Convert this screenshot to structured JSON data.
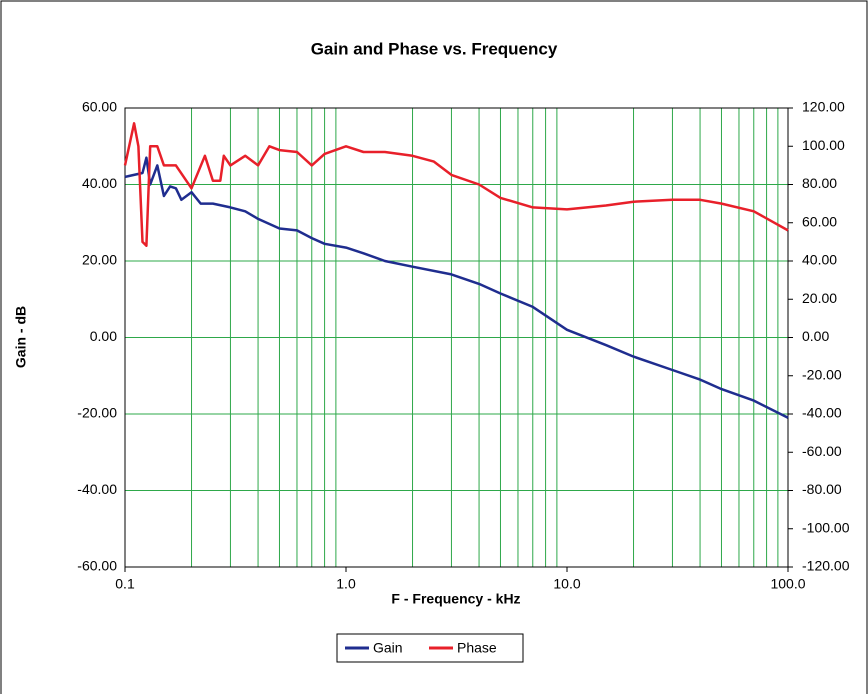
{
  "chart_data": {
    "type": "line",
    "title": "Gain and Phase vs. Frequency",
    "x_label": "F - Frequency - kHz",
    "y_label": "Gain - dB",
    "x_scale": "log",
    "grid": true,
    "minor_grid": true,
    "legend": "bottom",
    "xlim": [
      0.1,
      100
    ],
    "xticks": [
      0.1,
      {
        "value": 1,
        "label": "1.0"
      },
      {
        "value": 10,
        "label": "10.0"
      },
      {
        "value": 100,
        "label": "100.0"
      }
    ],
    "ylim": [
      -60,
      60
    ],
    "yticks": [
      {
        "value": -60,
        "label": "-60.00"
      },
      {
        "value": -40,
        "label": "-40.00"
      },
      {
        "value": -20,
        "label": "-20.00"
      },
      {
        "value": 0,
        "label": "0.00"
      },
      {
        "value": 20,
        "label": "20.00"
      },
      {
        "value": 40,
        "label": "40.00"
      },
      {
        "value": 60,
        "label": "60.00"
      }
    ],
    "y2lim": [
      -120,
      120
    ],
    "y2ticks": [
      {
        "value": -120,
        "label": "-120.00"
      },
      {
        "value": -100,
        "label": "-100.00"
      },
      {
        "value": -80,
        "label": "-80.00"
      },
      {
        "value": -60,
        "label": "-60.00"
      },
      {
        "value": -40,
        "label": "-40.00"
      },
      {
        "value": -20,
        "label": "-20.00"
      },
      {
        "value": 0,
        "label": "0.00"
      },
      {
        "value": 20,
        "label": "20.00"
      },
      {
        "value": 40,
        "label": "40.00"
      },
      {
        "value": 60,
        "label": "60.00"
      },
      {
        "value": 80,
        "label": "80.00"
      },
      {
        "value": 100,
        "label": "100.00"
      },
      {
        "value": 120,
        "label": "120.00"
      }
    ],
    "series": [
      {
        "name": "Gain",
        "color": "#1f2d8f",
        "x": [
          0.1,
          0.12,
          0.125,
          0.13,
          0.14,
          0.15,
          0.16,
          0.17,
          0.18,
          0.2,
          0.22,
          0.25,
          0.3,
          0.35,
          0.4,
          0.5,
          0.6,
          0.7,
          0.8,
          1.0,
          1.2,
          1.5,
          2,
          3,
          4,
          5,
          7,
          10,
          15,
          20,
          30,
          40,
          50,
          70,
          100
        ],
        "values": [
          42,
          43,
          47,
          40,
          45,
          37,
          39.5,
          39,
          36,
          38,
          35,
          35,
          34,
          33,
          31,
          28.5,
          28,
          26,
          24.5,
          23.5,
          22,
          20,
          18.5,
          16.5,
          14,
          11.5,
          8,
          2,
          -2,
          -5,
          -8.5,
          -11,
          -13.5,
          -16.5,
          -21
        ]
      },
      {
        "name": "Phase",
        "color": "#e8202a",
        "axis": "y2",
        "x": [
          0.1,
          0.11,
          0.115,
          0.12,
          0.125,
          0.13,
          0.14,
          0.15,
          0.17,
          0.2,
          0.23,
          0.25,
          0.27,
          0.28,
          0.3,
          0.35,
          0.4,
          0.45,
          0.5,
          0.6,
          0.7,
          0.8,
          1.0,
          1.2,
          1.5,
          2,
          2.5,
          3,
          4,
          5,
          7,
          10,
          15,
          20,
          30,
          40,
          50,
          70,
          100
        ],
        "values": [
          90,
          112,
          100,
          50,
          48,
          100,
          100,
          90,
          90,
          78,
          95,
          82,
          82,
          95,
          90,
          95,
          90,
          100,
          98,
          97,
          90,
          96,
          100,
          97,
          97,
          95,
          92,
          85,
          80,
          73,
          68,
          67,
          69,
          71,
          72,
          72,
          70,
          66,
          56
        ]
      }
    ]
  }
}
